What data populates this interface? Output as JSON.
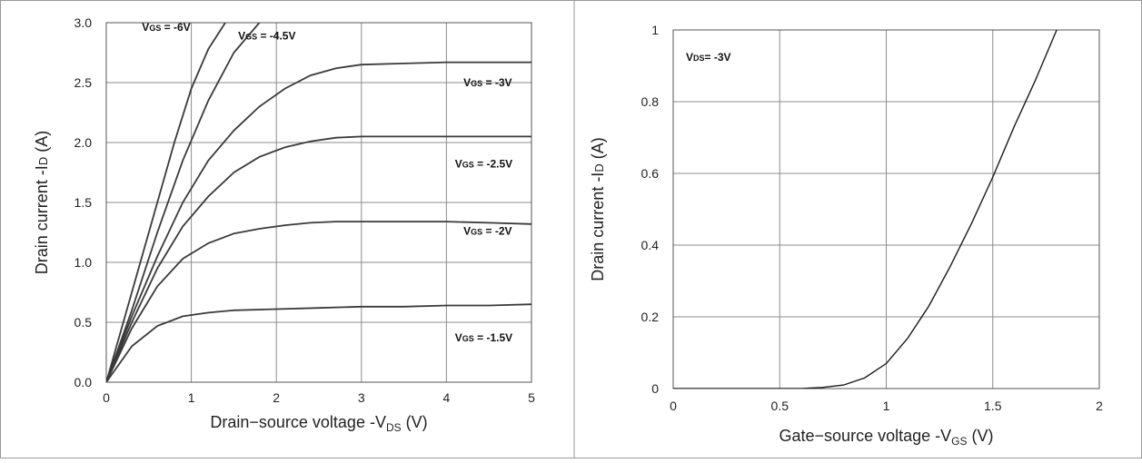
{
  "chart_data": [
    {
      "type": "line",
      "xlabel": "Drain−source voltage -V",
      "xlabel_sub": "DS",
      "xlabel_unit": " (V)",
      "ylabel": "Drain current -I",
      "ylabel_sub": "D",
      "ylabel_unit": " (A)",
      "xlim": [
        0,
        5
      ],
      "ylim": [
        0,
        3.0
      ],
      "xticks": [
        0,
        1,
        2,
        3,
        4,
        5
      ],
      "xtick_labels": [
        "0",
        "1",
        "2",
        "3",
        "4",
        "5"
      ],
      "yticks": [
        0,
        0.5,
        1.0,
        1.5,
        2.0,
        2.5,
        3.0
      ],
      "ytick_labels": [
        "0.0",
        "0.5",
        "1.0",
        "1.5",
        "2.0",
        "2.5",
        "3.0"
      ],
      "grid": true,
      "series": [
        {
          "name": "VGS = -6V",
          "label_main": "V",
          "label_sub": "GS",
          "label_rest": " = -6V",
          "label_at": [
            0.42,
            2.93
          ],
          "x": [
            0,
            0.3,
            0.6,
            0.8,
            1.0,
            1.2,
            1.4
          ],
          "y": [
            0,
            0.75,
            1.5,
            2.0,
            2.45,
            2.78,
            3.0
          ]
        },
        {
          "name": "VGS = -4.5V",
          "label_main": "V",
          "label_sub": "GS",
          "label_rest": " = -4.5V",
          "label_at": [
            1.55,
            2.86
          ],
          "x": [
            0,
            0.3,
            0.6,
            0.9,
            1.2,
            1.5,
            1.8
          ],
          "y": [
            0,
            0.6,
            1.25,
            1.85,
            2.35,
            2.75,
            3.0
          ]
        },
        {
          "name": "VGS = -3V",
          "label_main": "V",
          "label_sub": "GS",
          "label_rest": " = -3V",
          "label_at": [
            4.2,
            2.47
          ],
          "x": [
            0,
            0.3,
            0.6,
            0.9,
            1.2,
            1.5,
            1.8,
            2.1,
            2.4,
            2.7,
            3.0,
            3.5,
            4.0,
            4.5,
            5.0
          ],
          "y": [
            0,
            0.55,
            1.05,
            1.5,
            1.85,
            2.1,
            2.3,
            2.45,
            2.56,
            2.62,
            2.65,
            2.66,
            2.67,
            2.67,
            2.67
          ]
        },
        {
          "name": "VGS = -2.5V",
          "label_main": "V",
          "label_sub": "GS",
          "label_rest": " = -2.5V",
          "label_at": [
            4.1,
            1.79
          ],
          "x": [
            0,
            0.3,
            0.6,
            0.9,
            1.2,
            1.5,
            1.8,
            2.1,
            2.4,
            2.7,
            3.0,
            3.5,
            4.0,
            4.5,
            5.0
          ],
          "y": [
            0,
            0.5,
            0.95,
            1.3,
            1.55,
            1.75,
            1.88,
            1.96,
            2.01,
            2.04,
            2.05,
            2.05,
            2.05,
            2.05,
            2.05
          ]
        },
        {
          "name": "VGS = -2V",
          "label_main": "V",
          "label_sub": "GS",
          "label_rest": " = -2V",
          "label_at": [
            4.2,
            1.23
          ],
          "x": [
            0,
            0.3,
            0.6,
            0.9,
            1.2,
            1.5,
            1.8,
            2.1,
            2.4,
            2.7,
            3.0,
            3.5,
            4.0,
            4.5,
            5.0
          ],
          "y": [
            0,
            0.45,
            0.8,
            1.03,
            1.16,
            1.24,
            1.28,
            1.31,
            1.33,
            1.34,
            1.34,
            1.34,
            1.34,
            1.33,
            1.32
          ]
        },
        {
          "name": "VGS = -1.5V",
          "label_main": "V",
          "label_sub": "GS",
          "label_rest": " = -1.5V",
          "label_at": [
            4.1,
            0.34
          ],
          "x": [
            0,
            0.3,
            0.6,
            0.9,
            1.2,
            1.5,
            2.0,
            2.5,
            3.0,
            3.5,
            4.0,
            4.5,
            5.0
          ],
          "y": [
            0,
            0.3,
            0.47,
            0.55,
            0.58,
            0.6,
            0.61,
            0.62,
            0.63,
            0.63,
            0.64,
            0.64,
            0.65
          ]
        }
      ]
    },
    {
      "type": "line",
      "xlabel": "Gate−source voltage -V",
      "xlabel_sub": "GS",
      "xlabel_unit": " (V)",
      "ylabel": "Drain current -I",
      "ylabel_sub": "D",
      "ylabel_unit": " (A)",
      "xlim": [
        0,
        2
      ],
      "ylim": [
        0,
        1
      ],
      "xticks": [
        0,
        0.5,
        1,
        1.5,
        2
      ],
      "xtick_labels": [
        "0",
        "0.5",
        "1",
        "1.5",
        "2"
      ],
      "yticks": [
        0,
        0.2,
        0.4,
        0.6,
        0.8,
        1
      ],
      "ytick_labels": [
        "0",
        "0.2",
        "0.4",
        "0.6",
        "0.8",
        "1"
      ],
      "grid": true,
      "annotation": {
        "main": "V",
        "sub": "DS",
        "rest": "= -3V"
      },
      "series": [
        {
          "name": "VDS = -3V",
          "x": [
            0,
            0.6,
            0.7,
            0.8,
            0.9,
            1.0,
            1.1,
            1.2,
            1.3,
            1.4,
            1.5,
            1.6,
            1.7,
            1.8
          ],
          "y": [
            0,
            0,
            0.003,
            0.01,
            0.03,
            0.07,
            0.14,
            0.23,
            0.34,
            0.46,
            0.59,
            0.73,
            0.86,
            1.0
          ]
        }
      ]
    }
  ]
}
